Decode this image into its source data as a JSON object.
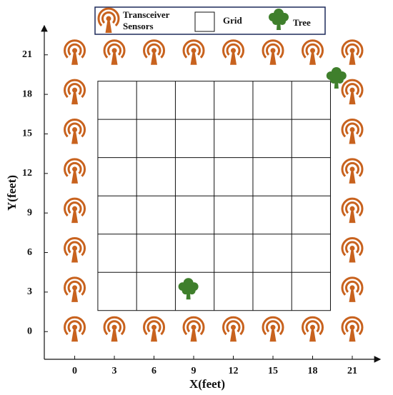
{
  "legend": {
    "sensors": [
      "Transceiver",
      "Sensors"
    ],
    "grid": "Grid",
    "tree": "Tree"
  },
  "colors": {
    "sensor": "#c8621e",
    "tree": "#3f7f2c"
  },
  "x_axis": {
    "label": "X(feet)",
    "ticks": [
      0,
      3,
      6,
      9,
      12,
      15,
      18,
      21
    ],
    "lim": [
      -2.3,
      23
    ]
  },
  "y_axis": {
    "label": "Y(feet)",
    "ticks": [
      0,
      3,
      6,
      9,
      12,
      15,
      18,
      21
    ],
    "lim": [
      -2.1,
      23.1
    ]
  },
  "grid": {
    "x": [
      1.75,
      19.35
    ],
    "y": [
      1.6,
      19
    ],
    "cols": 6,
    "rows": 6
  },
  "sensors": {
    "x": [
      0,
      3,
      6,
      9,
      12,
      15,
      18,
      21,
      0,
      3,
      6,
      9,
      12,
      15,
      18,
      21,
      0,
      0,
      0,
      0,
      0,
      0,
      21,
      21,
      21,
      21,
      21,
      21
    ],
    "y": [
      21,
      21,
      21,
      21,
      21,
      21,
      21,
      21,
      0,
      0,
      0,
      0,
      0,
      0,
      0,
      0,
      3,
      6,
      9,
      12,
      15,
      18,
      3,
      6,
      9,
      12,
      15,
      18
    ]
  },
  "trees": {
    "x": [
      8.6,
      19.8
    ],
    "y": [
      3.2,
      19.2
    ]
  }
}
